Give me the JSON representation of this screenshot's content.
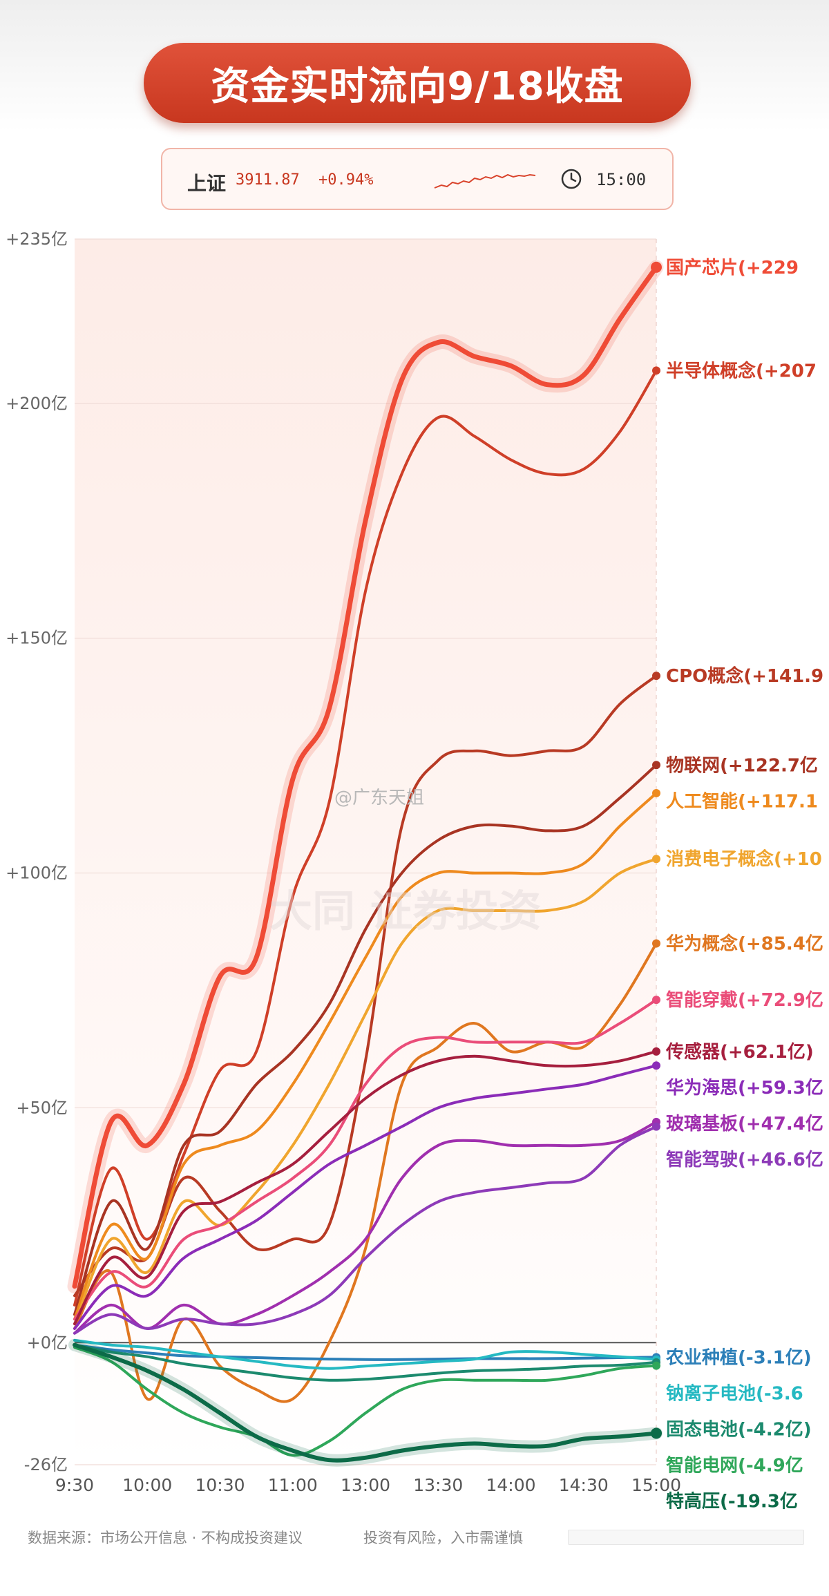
{
  "header": {
    "title": "资金实时流向9/18收盘"
  },
  "index_card": {
    "name": "上证",
    "value": "3911.87",
    "change": "+0.94%",
    "time": "15:00",
    "icons": [
      "sparkline-icon",
      "clock-icon"
    ]
  },
  "watermark": {
    "account": "@广东天姐",
    "faint": "大同 证券投资"
  },
  "footer": {
    "source": "数据来源：市场公开信息 · 不构成投资建议",
    "risk": "投资有风险，入市需谨慎"
  },
  "chart_data": {
    "type": "line",
    "title": "资金实时流向9/18收盘",
    "xlabel": "",
    "ylabel": "",
    "x_ticks": [
      "9:30",
      "10:00",
      "10:30",
      "11:00",
      "13:00",
      "13:30",
      "14:00",
      "14:30",
      "15:00"
    ],
    "y_ticks": [
      "+235亿",
      "+200亿",
      "+150亿",
      "+100亿",
      "+50亿",
      "+0亿",
      "-26亿"
    ],
    "ylim": [
      -26,
      235
    ],
    "grid": true,
    "legend": "right-end labels",
    "series": [
      {
        "name": "国产芯片",
        "label": "国产芯片(+229",
        "color": "#ef4b36",
        "width": 7,
        "values": [
          12,
          47,
          42,
          55,
          78,
          82,
          120,
          135,
          175,
          205,
          213,
          210,
          208,
          204,
          206,
          218,
          229
        ]
      },
      {
        "name": "半导体概念",
        "label": "半导体概念(+207",
        "color": "#cf3f28",
        "width": 4,
        "values": [
          8,
          37,
          22,
          40,
          58,
          62,
          95,
          115,
          160,
          185,
          197,
          193,
          188,
          185,
          186,
          194,
          207
        ]
      },
      {
        "name": "CPO概念",
        "label": "CPO概念(+141.9",
        "color": "#b83a24",
        "width": 4,
        "values": [
          10,
          20,
          18,
          35,
          28,
          20,
          22,
          25,
          60,
          110,
          124,
          126,
          125,
          126,
          127,
          136,
          142
        ]
      },
      {
        "name": "物联网",
        "label": "物联网(+122.7亿",
        "color": "#a83423",
        "width": 4,
        "values": [
          6,
          30,
          20,
          42,
          45,
          55,
          62,
          72,
          88,
          100,
          107,
          110,
          110,
          109,
          110,
          116,
          123
        ]
      },
      {
        "name": "人工智能",
        "label": "人工智能(+117.1",
        "color": "#ee8a1e",
        "width": 4,
        "values": [
          5,
          25,
          18,
          38,
          42,
          45,
          55,
          68,
          82,
          95,
          100,
          100,
          100,
          100,
          102,
          110,
          117
        ]
      },
      {
        "name": "消费电子概念",
        "label": "消费电子概念(+10",
        "color": "#f0a52e",
        "width": 4,
        "values": [
          4,
          22,
          15,
          30,
          25,
          32,
          42,
          55,
          70,
          85,
          92,
          92,
          92,
          92,
          94,
          100,
          103
        ]
      },
      {
        "name": "华为概念",
        "label": "华为概念(+85.4亿",
        "color": "#e07720",
        "width": 4,
        "values": [
          3,
          15,
          -12,
          5,
          -5,
          -10,
          -12,
          0,
          20,
          55,
          63,
          68,
          62,
          64,
          63,
          72,
          85
        ]
      },
      {
        "name": "智能穿戴",
        "label": "智能穿戴(+72.9亿",
        "color": "#ea4d79",
        "width": 4,
        "values": [
          5,
          15,
          12,
          22,
          25,
          30,
          35,
          42,
          55,
          63,
          65,
          64,
          64,
          64,
          64,
          68,
          73
        ]
      },
      {
        "name": "传感器",
        "label": "传感器(+62.1亿)",
        "color": "#a61f3e",
        "width": 4,
        "values": [
          4,
          18,
          14,
          28,
          30,
          34,
          38,
          45,
          52,
          57,
          60,
          61,
          60,
          59,
          59,
          60,
          62
        ]
      },
      {
        "name": "华为海思",
        "label": "华为海思(+59.3亿",
        "color": "#8b2cb8",
        "width": 4,
        "values": [
          3,
          12,
          10,
          18,
          22,
          26,
          32,
          38,
          42,
          46,
          50,
          52,
          53,
          54,
          55,
          57,
          59
        ]
      },
      {
        "name": "玻璃基板",
        "label": "玻璃基板(+47.4亿",
        "color": "#a02fae",
        "width": 4,
        "values": [
          2,
          8,
          3,
          8,
          4,
          6,
          10,
          15,
          22,
          35,
          42,
          43,
          42,
          42,
          42,
          43,
          47
        ]
      },
      {
        "name": "智能驾驶",
        "label": "智能驾驶(+46.6亿",
        "color": "#8d3ab8",
        "width": 4,
        "values": [
          2,
          6,
          3,
          5,
          4,
          4,
          6,
          10,
          18,
          25,
          30,
          32,
          33,
          34,
          35,
          42,
          46
        ]
      },
      {
        "name": "农业种植",
        "label": "农业种植(-3.1亿)",
        "color": "#2c7fb8",
        "width": 4,
        "values": [
          -0.5,
          -1.5,
          -2.2,
          -2.8,
          -3.0,
          -3.2,
          -3.4,
          -3.5,
          -3.6,
          -3.6,
          -3.5,
          -3.4,
          -3.4,
          -3.4,
          -3.3,
          -3.2,
          -3.1
        ]
      },
      {
        "name": "钠离子电池",
        "label": "钠离子电池(-3.6",
        "color": "#25b9c2",
        "width": 4,
        "values": [
          0.5,
          -0.5,
          -1,
          -2,
          -3,
          -4,
          -5,
          -5.5,
          -5,
          -4.5,
          -4,
          -3.5,
          -2,
          -2,
          -2.5,
          -3,
          -3.6
        ]
      },
      {
        "name": "固态电池",
        "label": "固态电池(-4.2亿)",
        "color": "#1c8a6e",
        "width": 4,
        "values": [
          -0.5,
          -2,
          -3,
          -4.5,
          -5.5,
          -6.5,
          -7.5,
          -8,
          -7.8,
          -7.2,
          -6.5,
          -6,
          -5.8,
          -5.5,
          -5,
          -4.8,
          -4.2
        ]
      },
      {
        "name": "智能电网",
        "label": "智能电网(-4.9亿",
        "color": "#2fa75a",
        "width": 4,
        "values": [
          -1,
          -4,
          -10,
          -15,
          -18,
          -20,
          -24,
          -21,
          -15,
          -10,
          -8,
          -8,
          -8,
          -8,
          -7,
          -5.5,
          -4.9
        ]
      },
      {
        "name": "特高压",
        "label": "特高压(-19.3亿",
        "color": "#0c6b48",
        "width": 6,
        "values": [
          -0.5,
          -3,
          -6,
          -10,
          -15,
          -20,
          -23,
          -25,
          -24.5,
          -23,
          -22,
          -21.5,
          -22,
          -22,
          -20.5,
          -20,
          -19.3
        ]
      }
    ],
    "x_index_note": "values sampled at 17 evenly spaced steps from 9:30 to 15:00"
  },
  "colors": {
    "title_bg": "#d9432b",
    "plot_bg_top": "#fdece7",
    "plot_bg_bottom": "#ffffff",
    "zero_line": "#555555"
  }
}
